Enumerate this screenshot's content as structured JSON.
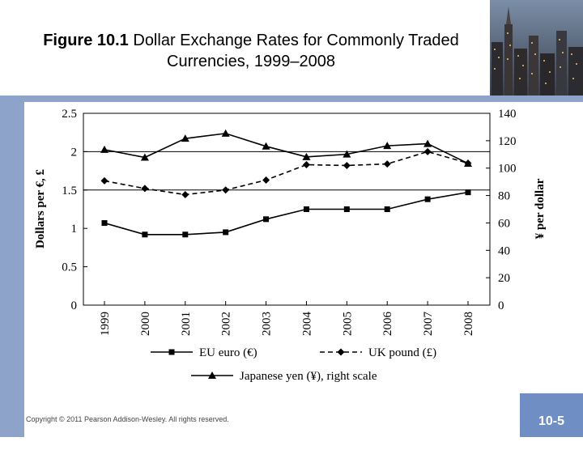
{
  "slide": {
    "title_bold": "Figure 10.1",
    "title_rest": " Dollar Exchange Rates for Commonly Traded Currencies, 1999–2008",
    "copyright": "Copyright © 2011 Pearson Addison-Wesley. All rights reserved.",
    "slide_number": "10-5",
    "photo_icon": "city-skyline-photo",
    "colors": {
      "accent_bar": "#8ea3c9",
      "slide_number_bg": "#6f8fc4"
    }
  },
  "chart_data": {
    "type": "line",
    "x": [
      "1999",
      "2000",
      "2001",
      "2002",
      "2003",
      "2004",
      "2005",
      "2006",
      "2007",
      "2008"
    ],
    "left_axis": {
      "label": "Dollars per €, £",
      "ylim": [
        0,
        2.5
      ],
      "ticks": [
        "0",
        "0.5",
        "1",
        "1.5",
        "2",
        "2.5"
      ]
    },
    "right_axis": {
      "label": "¥ per dollar",
      "ylim": [
        0,
        140
      ],
      "ticks": [
        "0",
        "20",
        "40",
        "60",
        "80",
        "100",
        "120",
        "140"
      ]
    },
    "series": [
      {
        "name": "EU euro (€)",
        "axis": "left",
        "marker": "square",
        "dash": "solid",
        "values": [
          1.07,
          0.92,
          0.92,
          0.95,
          1.12,
          1.25,
          1.25,
          1.25,
          1.38,
          1.47
        ]
      },
      {
        "name": "UK pound (£)",
        "axis": "left",
        "marker": "diamond",
        "dash": "dashed",
        "values": [
          1.62,
          1.52,
          1.44,
          1.5,
          1.63,
          1.83,
          1.82,
          1.84,
          2.0,
          1.85
        ]
      },
      {
        "name": "Japanese yen (¥), right scale",
        "axis": "right",
        "marker": "triangle",
        "dash": "solid",
        "values": [
          113.5,
          107.8,
          121.6,
          125.3,
          115.9,
          108.2,
          110.1,
          116.3,
          117.8,
          103.4
        ]
      }
    ],
    "grid": "horizontal at 2 and 1.5",
    "legend": "bottom"
  }
}
